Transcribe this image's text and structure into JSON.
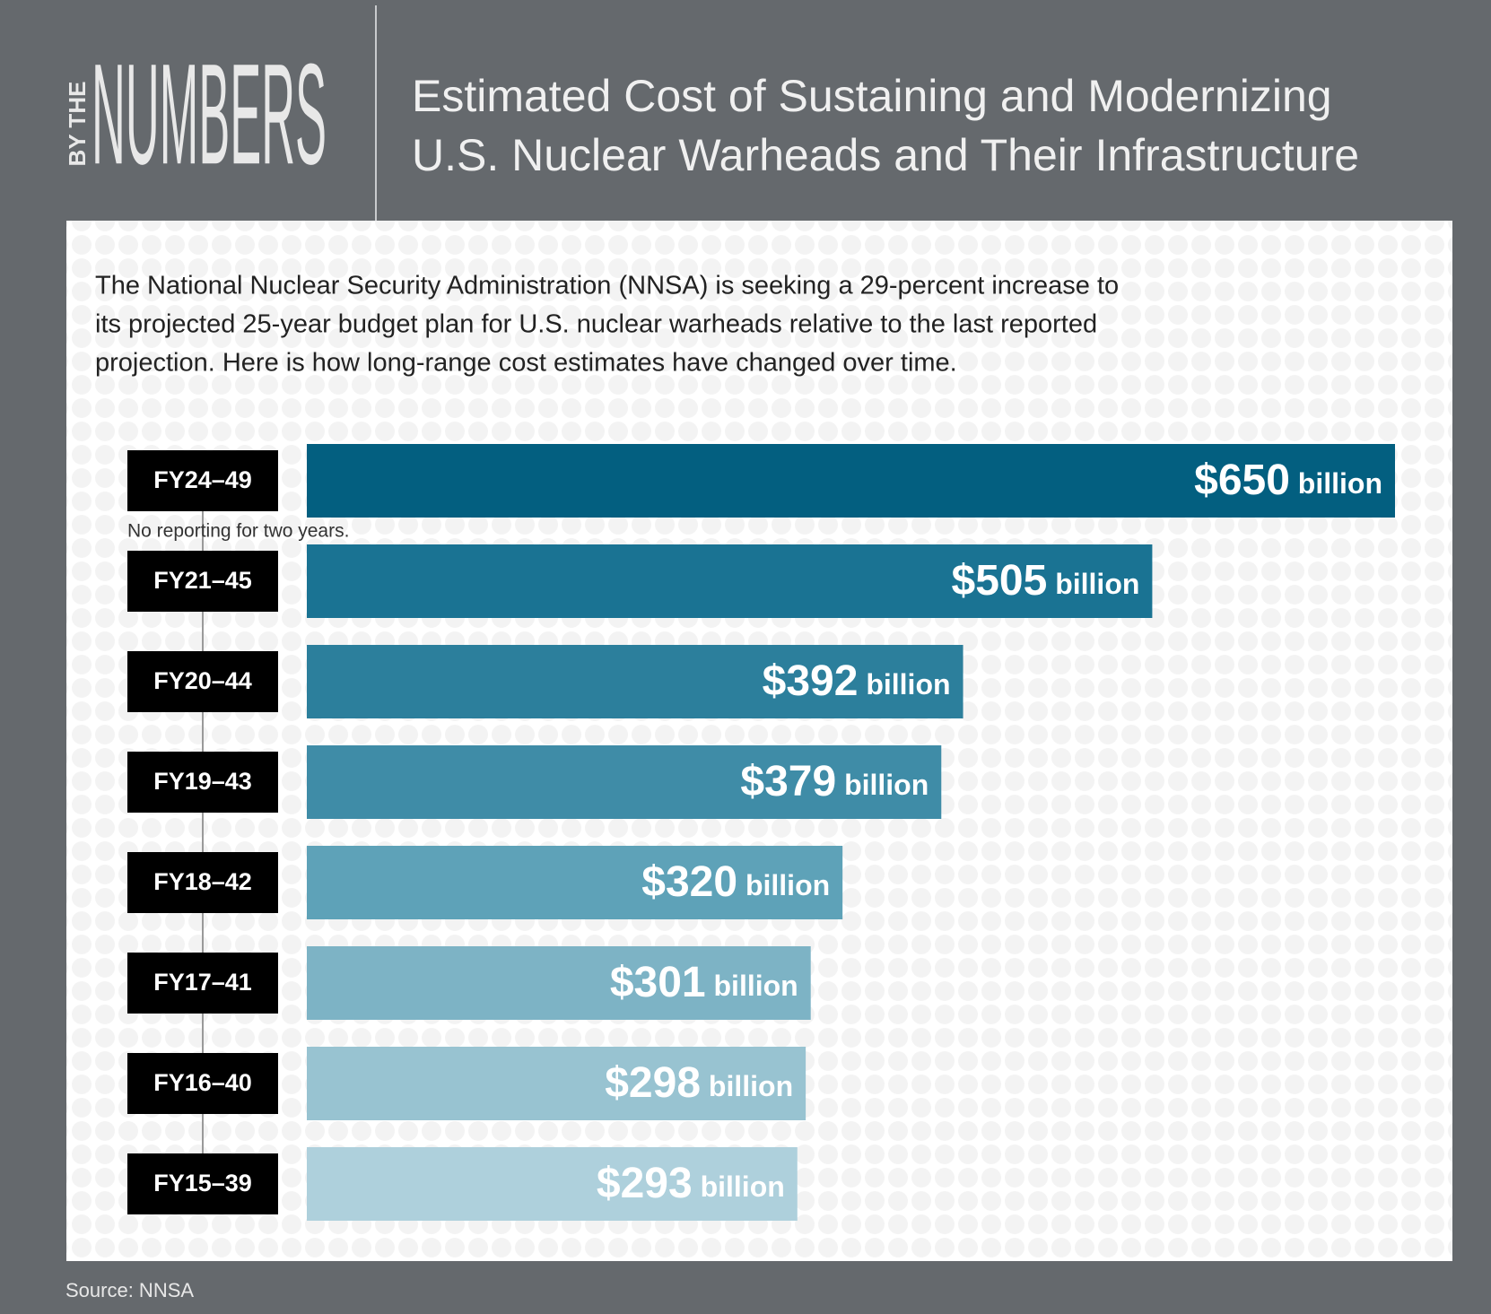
{
  "header": {
    "kicker": "BY THE",
    "brand": "NUMBERS"
  },
  "chart_data": {
    "type": "bar",
    "orientation": "horizontal",
    "title": [
      "Estimated Cost of Sustaining and Modernizing",
      "U.S. Nuclear Warheads and Their Infrastructure"
    ],
    "subtitle": [
      "The National Nuclear Security Administration (NNSA) is seeking a 29-percent increase to",
      "its projected 25-year budget plan for U.S. nuclear warheads relative to the last reported",
      "projection. Here is how long-range cost estimates have changed over time."
    ],
    "categories": [
      "FY24–49",
      "FY21–45",
      "FY20–44",
      "FY19–43",
      "FY18–42",
      "FY17–41",
      "FY16–40",
      "FY15–39"
    ],
    "values": [
      650,
      505,
      392,
      379,
      320,
      301,
      298,
      293
    ],
    "value_labels": [
      "$650 billion",
      "$505 billion",
      "$392 billion",
      "$379 billion",
      "$320 billion",
      "$301 billion",
      "$298 billion",
      "$293 billion"
    ],
    "colors": [
      "#035f80",
      "#1a7393",
      "#2c7f9c",
      "#3f8ca7",
      "#5ea2b8",
      "#7db3c5",
      "#98c3d1",
      "#aed0dc"
    ],
    "xlim": [
      0,
      650
    ],
    "annotation": "No reporting for two years.",
    "source": "Source: NNSA"
  }
}
